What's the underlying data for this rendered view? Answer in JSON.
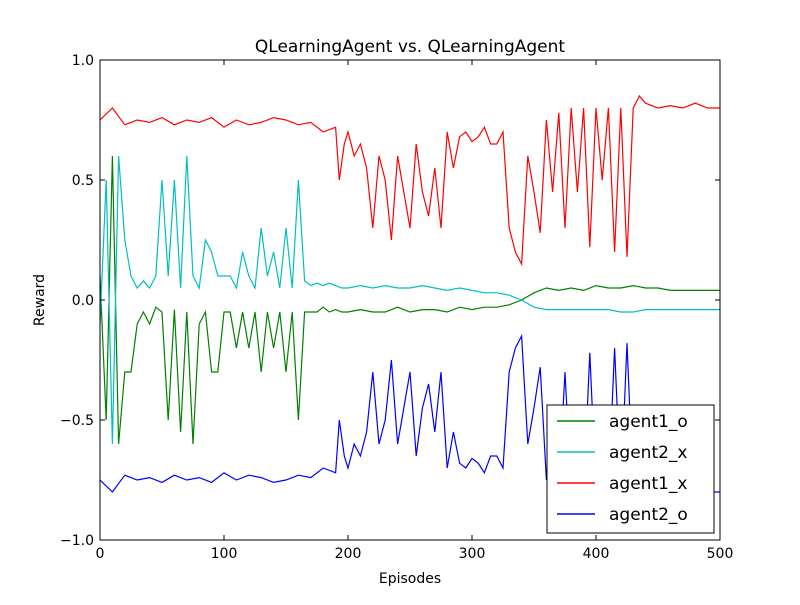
{
  "chart_data": {
    "type": "line",
    "title": "QLearningAgent vs. QLearningAgent",
    "xlabel": "Episodes",
    "ylabel": "Reward",
    "xlim": [
      0,
      500
    ],
    "ylim": [
      -1.0,
      1.0
    ],
    "xticks": [
      0,
      100,
      200,
      300,
      400,
      500
    ],
    "xtick_labels": [
      "0",
      "100",
      "200",
      "300",
      "400",
      "500"
    ],
    "yticks": [
      -1.0,
      -0.5,
      0.0,
      0.5,
      1.0
    ],
    "ytick_labels": [
      "−1.0",
      "−0.5",
      "0.0",
      "0.5",
      "1.0"
    ],
    "grid": false,
    "legend_position": "lower-right",
    "series": [
      {
        "name": "agent1_o",
        "color": "#008000",
        "x": [
          0,
          5,
          10,
          15,
          20,
          25,
          30,
          35,
          40,
          45,
          50,
          55,
          60,
          65,
          70,
          75,
          80,
          85,
          90,
          95,
          100,
          105,
          110,
          115,
          120,
          125,
          130,
          135,
          140,
          145,
          150,
          155,
          160,
          165,
          170,
          175,
          180,
          185,
          190,
          195,
          200,
          210,
          220,
          230,
          240,
          250,
          260,
          270,
          280,
          290,
          300,
          310,
          320,
          330,
          340,
          350,
          360,
          370,
          380,
          390,
          400,
          410,
          420,
          430,
          440,
          450,
          460,
          470,
          480,
          490,
          500
        ],
        "y": [
          0.1,
          -0.5,
          0.6,
          -0.6,
          -0.3,
          -0.3,
          -0.1,
          -0.05,
          -0.1,
          -0.03,
          -0.05,
          -0.5,
          -0.04,
          -0.55,
          -0.05,
          -0.6,
          -0.1,
          -0.05,
          -0.3,
          -0.3,
          -0.05,
          -0.05,
          -0.2,
          -0.05,
          -0.2,
          -0.05,
          -0.3,
          -0.05,
          -0.2,
          -0.05,
          -0.3,
          -0.05,
          -0.5,
          -0.05,
          -0.05,
          -0.05,
          -0.03,
          -0.05,
          -0.04,
          -0.05,
          -0.05,
          -0.04,
          -0.05,
          -0.05,
          -0.03,
          -0.05,
          -0.04,
          -0.04,
          -0.05,
          -0.03,
          -0.04,
          -0.03,
          -0.03,
          -0.02,
          0.0,
          0.03,
          0.05,
          0.04,
          0.05,
          0.04,
          0.06,
          0.05,
          0.05,
          0.06,
          0.05,
          0.05,
          0.04,
          0.04,
          0.04,
          0.04,
          0.04
        ]
      },
      {
        "name": "agent2_x",
        "color": "#00bfbf",
        "x": [
          0,
          5,
          10,
          15,
          20,
          25,
          30,
          35,
          40,
          45,
          50,
          55,
          60,
          65,
          70,
          75,
          80,
          85,
          90,
          95,
          100,
          105,
          110,
          115,
          120,
          125,
          130,
          135,
          140,
          145,
          150,
          155,
          160,
          165,
          170,
          175,
          180,
          185,
          190,
          195,
          200,
          210,
          220,
          230,
          240,
          250,
          260,
          270,
          280,
          290,
          300,
          310,
          320,
          330,
          340,
          350,
          360,
          370,
          380,
          390,
          400,
          410,
          420,
          430,
          440,
          450,
          460,
          470,
          480,
          490,
          500
        ],
        "y": [
          -0.1,
          0.5,
          -0.6,
          0.6,
          0.25,
          0.1,
          0.05,
          0.08,
          0.05,
          0.1,
          0.5,
          0.1,
          0.5,
          0.05,
          0.6,
          0.1,
          0.05,
          0.25,
          0.2,
          0.1,
          0.1,
          0.1,
          0.05,
          0.2,
          0.1,
          0.05,
          0.3,
          0.1,
          0.2,
          0.05,
          0.3,
          0.05,
          0.5,
          0.08,
          0.06,
          0.07,
          0.06,
          0.07,
          0.06,
          0.05,
          0.05,
          0.06,
          0.05,
          0.06,
          0.05,
          0.05,
          0.06,
          0.05,
          0.04,
          0.05,
          0.04,
          0.03,
          0.03,
          0.02,
          0.0,
          -0.03,
          -0.04,
          -0.04,
          -0.04,
          -0.04,
          -0.04,
          -0.04,
          -0.05,
          -0.05,
          -0.04,
          -0.04,
          -0.04,
          -0.04,
          -0.04,
          -0.04,
          -0.04
        ]
      },
      {
        "name": "agent1_x",
        "color": "#ff0000",
        "x": [
          0,
          10,
          20,
          30,
          40,
          50,
          60,
          70,
          80,
          90,
          100,
          110,
          120,
          130,
          140,
          150,
          160,
          170,
          180,
          190,
          193,
          197,
          200,
          205,
          210,
          215,
          220,
          225,
          230,
          235,
          240,
          245,
          250,
          255,
          260,
          265,
          270,
          275,
          280,
          285,
          290,
          295,
          300,
          305,
          310,
          315,
          320,
          325,
          330,
          335,
          340,
          345,
          350,
          355,
          360,
          365,
          370,
          375,
          380,
          385,
          390,
          395,
          400,
          405,
          410,
          415,
          420,
          425,
          430,
          435,
          440,
          450,
          460,
          470,
          480,
          490,
          500
        ],
        "y": [
          0.75,
          0.8,
          0.73,
          0.75,
          0.74,
          0.76,
          0.73,
          0.75,
          0.74,
          0.76,
          0.72,
          0.75,
          0.73,
          0.74,
          0.76,
          0.75,
          0.73,
          0.74,
          0.7,
          0.72,
          0.5,
          0.65,
          0.7,
          0.6,
          0.65,
          0.55,
          0.3,
          0.6,
          0.5,
          0.25,
          0.6,
          0.45,
          0.3,
          0.65,
          0.45,
          0.35,
          0.55,
          0.3,
          0.7,
          0.55,
          0.68,
          0.7,
          0.66,
          0.68,
          0.72,
          0.65,
          0.65,
          0.7,
          0.3,
          0.2,
          0.15,
          0.6,
          0.45,
          0.28,
          0.75,
          0.45,
          0.78,
          0.3,
          0.8,
          0.45,
          0.8,
          0.22,
          0.8,
          0.5,
          0.8,
          0.2,
          0.8,
          0.18,
          0.8,
          0.85,
          0.82,
          0.8,
          0.81,
          0.8,
          0.82,
          0.8,
          0.8
        ]
      },
      {
        "name": "agent2_o",
        "color": "#0000ff",
        "x": [
          0,
          10,
          20,
          30,
          40,
          50,
          60,
          70,
          80,
          90,
          100,
          110,
          120,
          130,
          140,
          150,
          160,
          170,
          180,
          190,
          193,
          197,
          200,
          205,
          210,
          215,
          220,
          225,
          230,
          235,
          240,
          245,
          250,
          255,
          260,
          265,
          270,
          275,
          280,
          285,
          290,
          295,
          300,
          305,
          310,
          315,
          320,
          325,
          330,
          335,
          340,
          345,
          350,
          355,
          360,
          365,
          370,
          375,
          380,
          385,
          390,
          395,
          400,
          405,
          410,
          415,
          420,
          425,
          430,
          435,
          440,
          450,
          460,
          470,
          480,
          490,
          500
        ],
        "y": [
          -0.75,
          -0.8,
          -0.73,
          -0.75,
          -0.74,
          -0.76,
          -0.73,
          -0.75,
          -0.74,
          -0.76,
          -0.72,
          -0.75,
          -0.73,
          -0.74,
          -0.76,
          -0.75,
          -0.73,
          -0.74,
          -0.7,
          -0.72,
          -0.5,
          -0.65,
          -0.7,
          -0.6,
          -0.65,
          -0.55,
          -0.3,
          -0.6,
          -0.5,
          -0.25,
          -0.6,
          -0.45,
          -0.3,
          -0.65,
          -0.45,
          -0.35,
          -0.55,
          -0.3,
          -0.7,
          -0.55,
          -0.68,
          -0.7,
          -0.66,
          -0.68,
          -0.72,
          -0.65,
          -0.65,
          -0.7,
          -0.3,
          -0.2,
          -0.15,
          -0.6,
          -0.45,
          -0.28,
          -0.75,
          -0.45,
          -0.78,
          -0.3,
          -0.8,
          -0.45,
          -0.8,
          -0.22,
          -0.8,
          -0.5,
          -0.8,
          -0.2,
          -0.8,
          -0.18,
          -0.8,
          -0.85,
          -0.82,
          -0.8,
          -0.81,
          -0.8,
          -0.82,
          -0.8,
          -0.8
        ]
      }
    ]
  }
}
